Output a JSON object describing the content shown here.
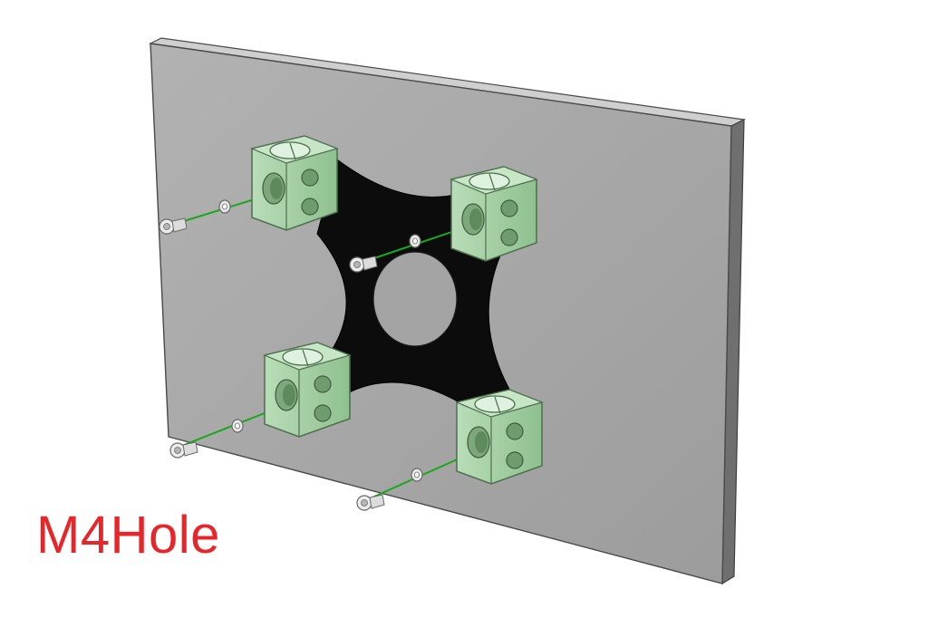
{
  "caption": {
    "text": "M4Hole",
    "color": "#e8262a"
  },
  "colors": {
    "panel_face": "#a6a6a6",
    "panel_edge_top": "#c8c8c8",
    "panel_edge_side": "#6e6e6e",
    "mount_plate": "#0c0c0c",
    "clamp_fill": "#a9d3a9",
    "clamp_stroke": "#4d6e4d",
    "guide_line": "#1aa81a",
    "screw": "#e6e6e6"
  },
  "components": [
    {
      "name": "display-panel"
    },
    {
      "name": "x-mount-plate"
    },
    {
      "name": "tube-clamp",
      "count": 4
    },
    {
      "name": "m4-screw",
      "count": 4
    },
    {
      "name": "washer",
      "count": 4
    }
  ]
}
